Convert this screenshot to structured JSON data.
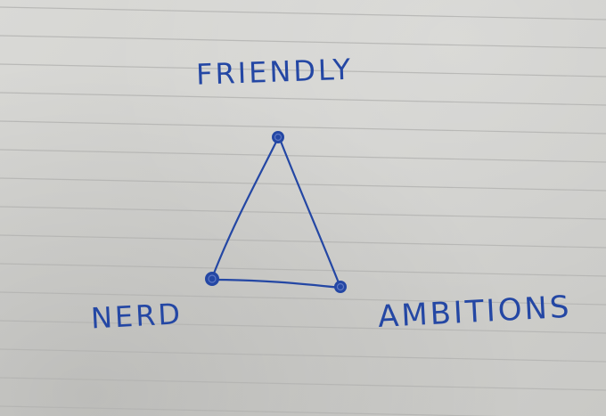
{
  "labels": {
    "top": "FRIENDLY",
    "left": "NERD",
    "right": "AMBITIONS"
  },
  "ink_color": "#2447a4",
  "paper_color": "#d6d6d3",
  "line_color": "#b4b4b2"
}
